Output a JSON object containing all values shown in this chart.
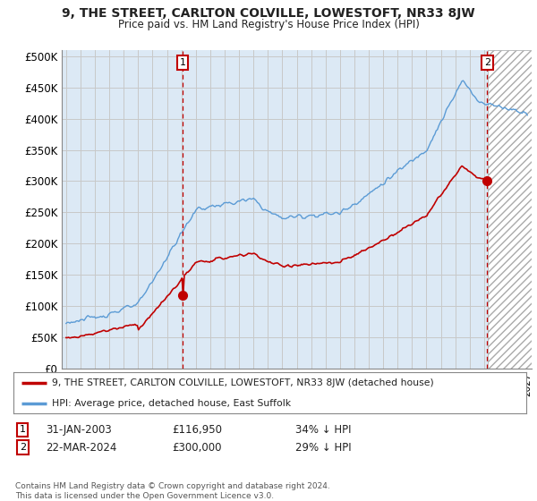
{
  "title": "9, THE STREET, CARLTON COLVILLE, LOWESTOFT, NR33 8JW",
  "subtitle": "Price paid vs. HM Land Registry's House Price Index (HPI)",
  "ylabel_ticks": [
    "£0",
    "£50K",
    "£100K",
    "£150K",
    "£200K",
    "£250K",
    "£300K",
    "£350K",
    "£400K",
    "£450K",
    "£500K"
  ],
  "ytick_values": [
    0,
    50000,
    100000,
    150000,
    200000,
    250000,
    300000,
    350000,
    400000,
    450000,
    500000
  ],
  "ylim": [
    0,
    510000
  ],
  "xlim_start": 1994.7,
  "xlim_end": 2027.3,
  "hpi_color": "#5b9bd5",
  "price_color": "#c00000",
  "chart_bg": "#dce9f5",
  "hatch_start": 2024.25,
  "marker1_x": 2003.08,
  "marker1_y": 116950,
  "marker2_x": 2024.22,
  "marker2_y": 300000,
  "legend_label1": "9, THE STREET, CARLTON COLVILLE, LOWESTOFT, NR33 8JW (detached house)",
  "legend_label2": "HPI: Average price, detached house, East Suffolk",
  "note1_date": "31-JAN-2003",
  "note1_price": "£116,950",
  "note1_hpi": "34% ↓ HPI",
  "note2_date": "22-MAR-2024",
  "note2_price": "£300,000",
  "note2_hpi": "29% ↓ HPI",
  "copyright": "Contains HM Land Registry data © Crown copyright and database right 2024.\nThis data is licensed under the Open Government Licence v3.0.",
  "background_color": "#ffffff",
  "grid_color": "#c8c8c8"
}
